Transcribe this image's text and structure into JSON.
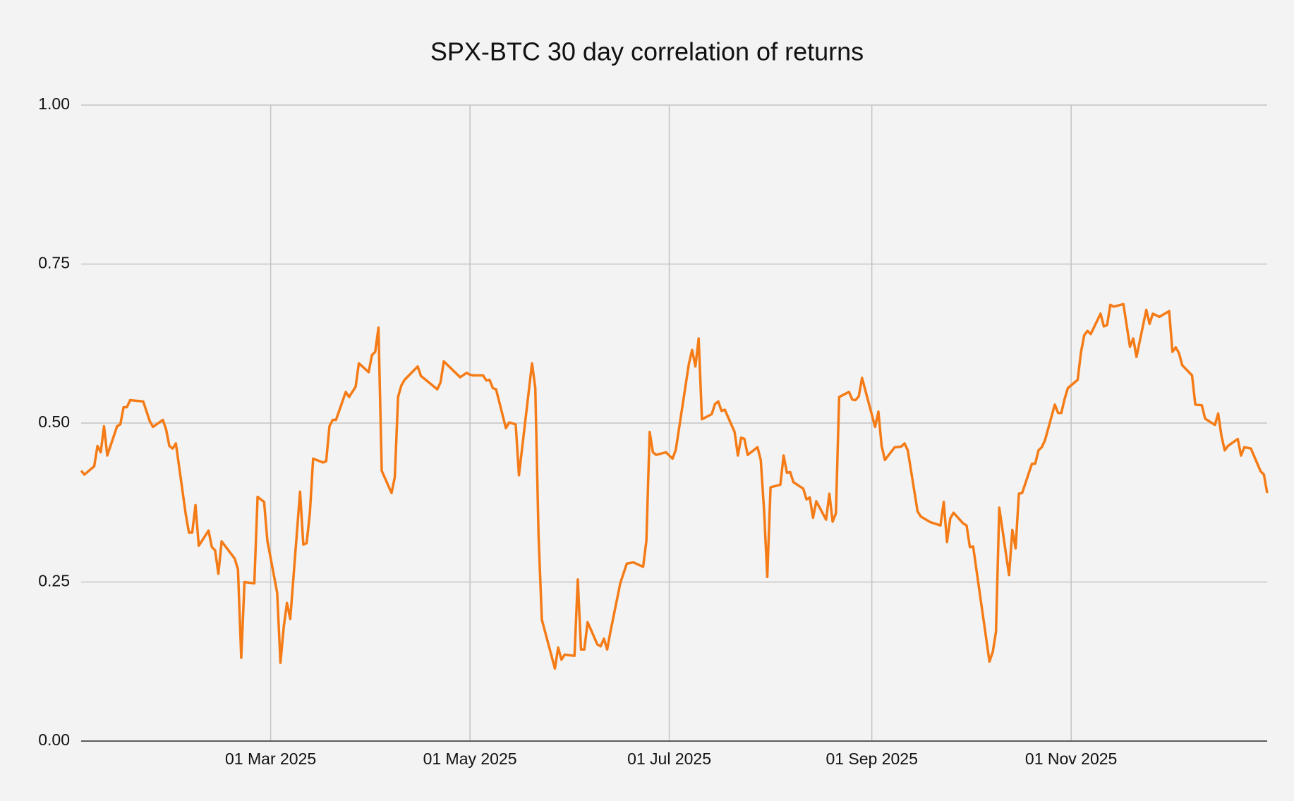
{
  "chart_data": {
    "type": "line",
    "title": "SPX-BTC 30 day correlation of returns",
    "x": [
      "2025-01-02",
      "2025-01-03",
      "2025-01-06",
      "2025-01-07",
      "2025-01-08",
      "2025-01-09",
      "2025-01-10",
      "2025-01-13",
      "2025-01-14",
      "2025-01-15",
      "2025-01-16",
      "2025-01-17",
      "2025-01-21",
      "2025-01-23",
      "2025-01-24",
      "2025-01-27",
      "2025-01-28",
      "2025-01-29",
      "2025-01-30",
      "2025-01-31",
      "2025-02-03",
      "2025-02-04",
      "2025-02-05",
      "2025-02-06",
      "2025-02-07",
      "2025-02-10",
      "2025-02-11",
      "2025-02-12",
      "2025-02-13",
      "2025-02-14",
      "2025-02-18",
      "2025-02-19",
      "2025-02-20",
      "2025-02-21",
      "2025-02-24",
      "2025-02-25",
      "2025-02-27",
      "2025-02-28",
      "2025-03-03",
      "2025-03-04",
      "2025-03-05",
      "2025-03-06",
      "2025-03-07",
      "2025-03-10",
      "2025-03-11",
      "2025-03-12",
      "2025-03-13",
      "2025-03-14",
      "2025-03-17",
      "2025-03-18",
      "2025-03-19",
      "2025-03-20",
      "2025-03-21",
      "2025-03-24",
      "2025-03-25",
      "2025-03-27",
      "2025-03-28",
      "2025-03-31",
      "2025-04-01",
      "2025-04-02",
      "2025-04-03",
      "2025-04-04",
      "2025-04-07",
      "2025-04-08",
      "2025-04-09",
      "2025-04-10",
      "2025-04-11",
      "2025-04-15",
      "2025-04-16",
      "2025-04-17",
      "2025-04-21",
      "2025-04-22",
      "2025-04-23",
      "2025-04-28",
      "2025-04-30",
      "2025-05-01",
      "2025-05-02",
      "2025-05-05",
      "2025-05-06",
      "2025-05-07",
      "2025-05-08",
      "2025-05-09",
      "2025-05-12",
      "2025-05-13",
      "2025-05-15",
      "2025-05-16",
      "2025-05-20",
      "2025-05-21",
      "2025-05-22",
      "2025-05-23",
      "2025-05-27",
      "2025-05-28",
      "2025-05-29",
      "2025-05-30",
      "2025-06-02",
      "2025-06-03",
      "2025-06-04",
      "2025-06-05",
      "2025-06-06",
      "2025-06-09",
      "2025-06-10",
      "2025-06-11",
      "2025-06-12",
      "2025-06-13",
      "2025-06-16",
      "2025-06-18",
      "2025-06-20",
      "2025-06-23",
      "2025-06-24",
      "2025-06-25",
      "2025-06-26",
      "2025-06-27",
      "2025-06-30",
      "2025-07-02",
      "2025-07-03",
      "2025-07-07",
      "2025-07-08",
      "2025-07-09",
      "2025-07-10",
      "2025-07-11",
      "2025-07-14",
      "2025-07-15",
      "2025-07-16",
      "2025-07-17",
      "2025-07-18",
      "2025-07-21",
      "2025-07-22",
      "2025-07-23",
      "2025-07-24",
      "2025-07-25",
      "2025-07-28",
      "2025-07-29",
      "2025-07-30",
      "2025-07-31",
      "2025-08-01",
      "2025-08-04",
      "2025-08-05",
      "2025-08-06",
      "2025-08-07",
      "2025-08-08",
      "2025-08-11",
      "2025-08-12",
      "2025-08-13",
      "2025-08-14",
      "2025-08-15",
      "2025-08-18",
      "2025-08-19",
      "2025-08-20",
      "2025-08-21",
      "2025-08-22",
      "2025-08-25",
      "2025-08-26",
      "2025-08-27",
      "2025-08-28",
      "2025-08-29",
      "2025-09-02",
      "2025-09-03",
      "2025-09-04",
      "2025-09-05",
      "2025-09-08",
      "2025-09-10",
      "2025-09-11",
      "2025-09-12",
      "2025-09-15",
      "2025-09-16",
      "2025-09-19",
      "2025-09-22",
      "2025-09-23",
      "2025-09-24",
      "2025-09-25",
      "2025-09-26",
      "2025-09-29",
      "2025-09-30",
      "2025-10-01",
      "2025-10-02",
      "2025-10-07",
      "2025-10-08",
      "2025-10-09",
      "2025-10-10",
      "2025-10-13",
      "2025-10-14",
      "2025-10-15",
      "2025-10-16",
      "2025-10-17",
      "2025-10-20",
      "2025-10-21",
      "2025-10-22",
      "2025-10-23",
      "2025-10-24",
      "2025-10-27",
      "2025-10-28",
      "2025-10-29",
      "2025-10-30",
      "2025-10-31",
      "2025-11-03",
      "2025-11-04",
      "2025-11-05",
      "2025-11-06",
      "2025-11-07",
      "2025-11-10",
      "2025-11-11",
      "2025-11-12",
      "2025-11-13",
      "2025-11-14",
      "2025-11-17",
      "2025-11-19",
      "2025-11-20",
      "2025-11-21",
      "2025-11-24",
      "2025-11-25",
      "2025-11-26",
      "2025-11-28",
      "2025-12-01",
      "2025-12-02",
      "2025-12-03",
      "2025-12-04",
      "2025-12-05",
      "2025-12-08",
      "2025-12-09",
      "2025-12-11",
      "2025-12-12",
      "2025-12-15",
      "2025-12-16",
      "2025-12-17",
      "2025-12-18",
      "2025-12-19",
      "2025-12-22",
      "2025-12-23",
      "2025-12-24",
      "2025-12-26",
      "2025-12-29",
      "2025-12-30",
      "2025-12-31"
    ],
    "series": [
      {
        "color": "#f47b16",
        "values": [
          0.425,
          0.419,
          0.432,
          0.464,
          0.454,
          0.495,
          0.449,
          0.495,
          0.498,
          0.525,
          0.525,
          0.536,
          0.534,
          0.503,
          0.494,
          0.505,
          0.49,
          0.464,
          0.46,
          0.468,
          0.357,
          0.328,
          0.328,
          0.371,
          0.307,
          0.331,
          0.305,
          0.3,
          0.263,
          0.314,
          0.287,
          0.27,
          0.131,
          0.25,
          0.248,
          0.384,
          0.376,
          0.315,
          0.233,
          0.123,
          0.179,
          0.217,
          0.192,
          0.392,
          0.309,
          0.311,
          0.358,
          0.444,
          0.438,
          0.44,
          0.495,
          0.505,
          0.505,
          0.549,
          0.541,
          0.557,
          0.594,
          0.58,
          0.607,
          0.612,
          0.65,
          0.425,
          0.39,
          0.415,
          0.541,
          0.559,
          0.568,
          0.589,
          0.574,
          0.57,
          0.553,
          0.564,
          0.597,
          0.572,
          0.579,
          0.576,
          0.575,
          0.575,
          0.567,
          0.568,
          0.555,
          0.553,
          0.492,
          0.501,
          0.498,
          0.418,
          0.594,
          0.555,
          0.322,
          0.191,
          0.114,
          0.147,
          0.128,
          0.136,
          0.134,
          0.254,
          0.144,
          0.144,
          0.187,
          0.152,
          0.149,
          0.161,
          0.144,
          0.172,
          0.248,
          0.279,
          0.281,
          0.274,
          0.315,
          0.486,
          0.454,
          0.45,
          0.454,
          0.444,
          0.458,
          0.593,
          0.615,
          0.589,
          0.633,
          0.506,
          0.514,
          0.53,
          0.534,
          0.519,
          0.521,
          0.486,
          0.449,
          0.477,
          0.475,
          0.45,
          0.462,
          0.442,
          0.364,
          0.258,
          0.399,
          0.403,
          0.449,
          0.422,
          0.423,
          0.407,
          0.397,
          0.38,
          0.383,
          0.351,
          0.377,
          0.348,
          0.389,
          0.345,
          0.358,
          0.541,
          0.549,
          0.537,
          0.536,
          0.542,
          0.571,
          0.494,
          0.518,
          0.464,
          0.442,
          0.462,
          0.463,
          0.468,
          0.457,
          0.361,
          0.353,
          0.344,
          0.339,
          0.376,
          0.313,
          0.35,
          0.359,
          0.342,
          0.339,
          0.305,
          0.306,
          0.125,
          0.14,
          0.172,
          0.367,
          0.261,
          0.332,
          0.303,
          0.389,
          0.39,
          0.436,
          0.436,
          0.457,
          0.462,
          0.473,
          0.529,
          0.516,
          0.516,
          0.538,
          0.555,
          0.568,
          0.611,
          0.638,
          0.645,
          0.64,
          0.672,
          0.652,
          0.654,
          0.686,
          0.683,
          0.687,
          0.62,
          0.633,
          0.604,
          0.678,
          0.656,
          0.672,
          0.667,
          0.676,
          0.612,
          0.619,
          0.61,
          0.591,
          0.575,
          0.529,
          0.528,
          0.507,
          0.497,
          0.515,
          0.48,
          0.457,
          0.464,
          0.475,
          0.449,
          0.462,
          0.46,
          0.424,
          0.419,
          0.39
        ]
      }
    ],
    "xlim": [
      "2025-01-02",
      "2025-12-31"
    ],
    "xticks": [
      {
        "value": "2025-03-01",
        "label": "01 Mar 2025"
      },
      {
        "value": "2025-05-01",
        "label": "01 May 2025"
      },
      {
        "value": "2025-07-01",
        "label": "01 Jul 2025"
      },
      {
        "value": "2025-09-01",
        "label": "01 Sep 2025"
      },
      {
        "value": "2025-11-01",
        "label": "01 Nov 2025"
      }
    ],
    "ylim": [
      0,
      1
    ],
    "yticks": [
      {
        "value": 0,
        "label": "0.00"
      },
      {
        "value": 0.25,
        "label": "0.25"
      },
      {
        "value": 0.5,
        "label": "0.50"
      },
      {
        "value": 0.75,
        "label": "0.75"
      },
      {
        "value": 1,
        "label": "1.00"
      }
    ],
    "grid": true
  }
}
